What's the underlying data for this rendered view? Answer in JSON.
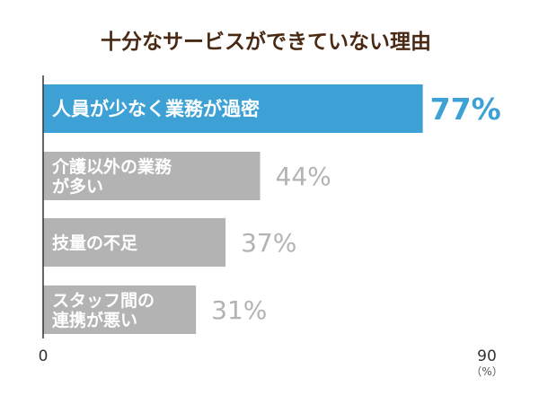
{
  "chart_data": {
    "type": "bar",
    "orientation": "horizontal",
    "title": "十分なサービスができていない理由",
    "categories": [
      [
        "人員が少なく業務が過密"
      ],
      [
        "介護以外の業務",
        "が多い"
      ],
      [
        "技量の不足"
      ],
      [
        "スタッフ間の",
        "連携が悪い"
      ]
    ],
    "values": [
      77,
      44,
      37,
      31
    ],
    "value_labels": [
      "77%",
      "44%",
      "37%",
      "31%"
    ],
    "xlim": [
      0,
      90
    ],
    "x_ticks": [
      "0",
      "90"
    ],
    "unit": "（%）",
    "grid": false,
    "legend": "none",
    "colors": {
      "highlight_bar": "#3ea1d6",
      "bar": "#b3b3b3",
      "highlight_value": "#3ea1d6",
      "value": "#b3b3b3",
      "bar_label": "#ffffff",
      "title": "#4a2a14",
      "axis": "#333333"
    },
    "highlight_index": 0
  }
}
